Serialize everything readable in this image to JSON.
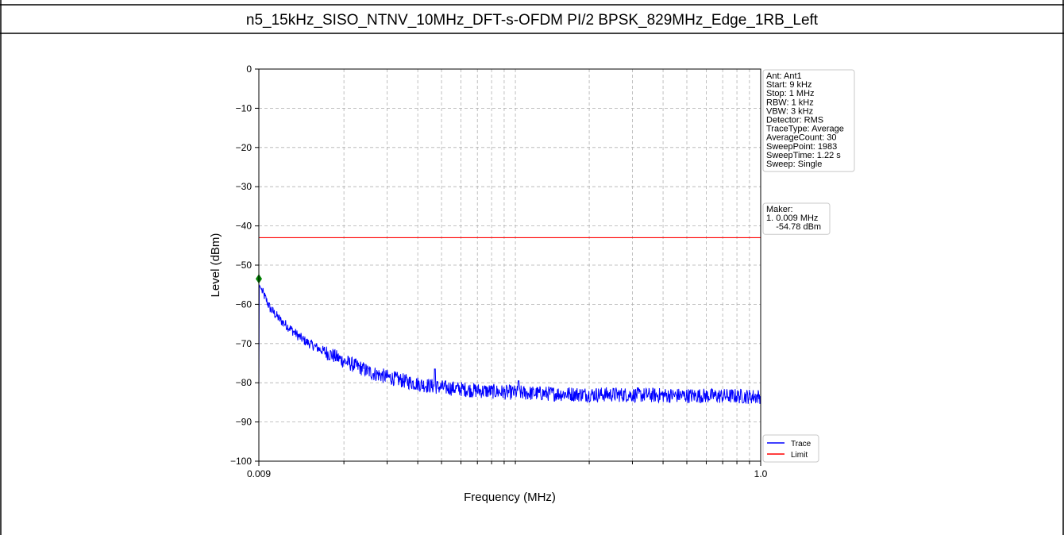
{
  "table": {
    "title": "n5_15kHz_SISO_NTNV_10MHz_DFT-s-OFDM PI/2 BPSK_829MHz_Edge_1RB_Left"
  },
  "settings_box": {
    "lines": [
      "Ant: Ant1",
      "Start: 9 kHz",
      "Stop: 1 MHz",
      "RBW: 1 kHz",
      "VBW: 3 kHz",
      "Detector: RMS",
      "TraceType: Average",
      "AverageCount: 30",
      "SweepPoint: 1983",
      "SweepTime: 1.22 s",
      "Sweep: Single"
    ]
  },
  "marker_box": {
    "lines": [
      "Maker:",
      "1. 0.009 MHz",
      "    -54.78 dBm"
    ]
  },
  "colors": {
    "trace": "#0000ff",
    "limit": "#ff0000",
    "marker": "#008000",
    "grid": "#b0b0b0"
  },
  "chart_data": {
    "type": "line",
    "title": "",
    "xlabel": "Frequency (MHz)",
    "ylabel": "Level (dBm)",
    "x_scale": "log",
    "xlim": [
      0.009,
      1.0
    ],
    "ylim": [
      -100,
      0
    ],
    "x_ticks": [
      0.009,
      1.0
    ],
    "x_tick_labels": [
      "0.009",
      "1.0"
    ],
    "y_ticks": [
      0,
      -10,
      -20,
      -30,
      -40,
      -50,
      -60,
      -70,
      -80,
      -90,
      -100
    ],
    "y_tick_labels": [
      "0",
      "−10",
      "−20",
      "−30",
      "−40",
      "−50",
      "−60",
      "−70",
      "−80",
      "−90",
      "−100"
    ],
    "grid": true,
    "legend_position": "bottom-right",
    "series": [
      {
        "name": "Trace",
        "color": "#0000ff",
        "x": [
          0.009,
          0.0095,
          0.01,
          0.011,
          0.012,
          0.013,
          0.014,
          0.016,
          0.018,
          0.02,
          0.023,
          0.026,
          0.03,
          0.035,
          0.04,
          0.045,
          0.05,
          0.06,
          0.07,
          0.08,
          0.09,
          0.1,
          0.12,
          0.15,
          0.2,
          0.25,
          0.3,
          0.4,
          0.5,
          0.6,
          0.7,
          0.8,
          0.9,
          1.0
        ],
        "values": [
          -54.8,
          -58,
          -61,
          -64,
          -66,
          -68,
          -69.5,
          -71.5,
          -73,
          -74.5,
          -76,
          -77.5,
          -78.5,
          -79.5,
          -80.3,
          -80.8,
          -81.2,
          -81.6,
          -82,
          -82.2,
          -82.4,
          -82.5,
          -82.7,
          -82.8,
          -83,
          -83,
          -83.1,
          -83.2,
          -83.3,
          -83.3,
          -83.4,
          -83.4,
          -83.5,
          -83.5
        ]
      },
      {
        "name": "Limit",
        "color": "#ff0000",
        "x": [
          0.009,
          1.0
        ],
        "values": [
          -43,
          -43
        ]
      }
    ],
    "spurs": [
      {
        "x": 0.047,
        "value": -76.5
      },
      {
        "x": 0.103,
        "value": -79.5
      }
    ],
    "markers": [
      {
        "label": "1",
        "x": 0.009,
        "value": -53.5
      }
    ]
  }
}
